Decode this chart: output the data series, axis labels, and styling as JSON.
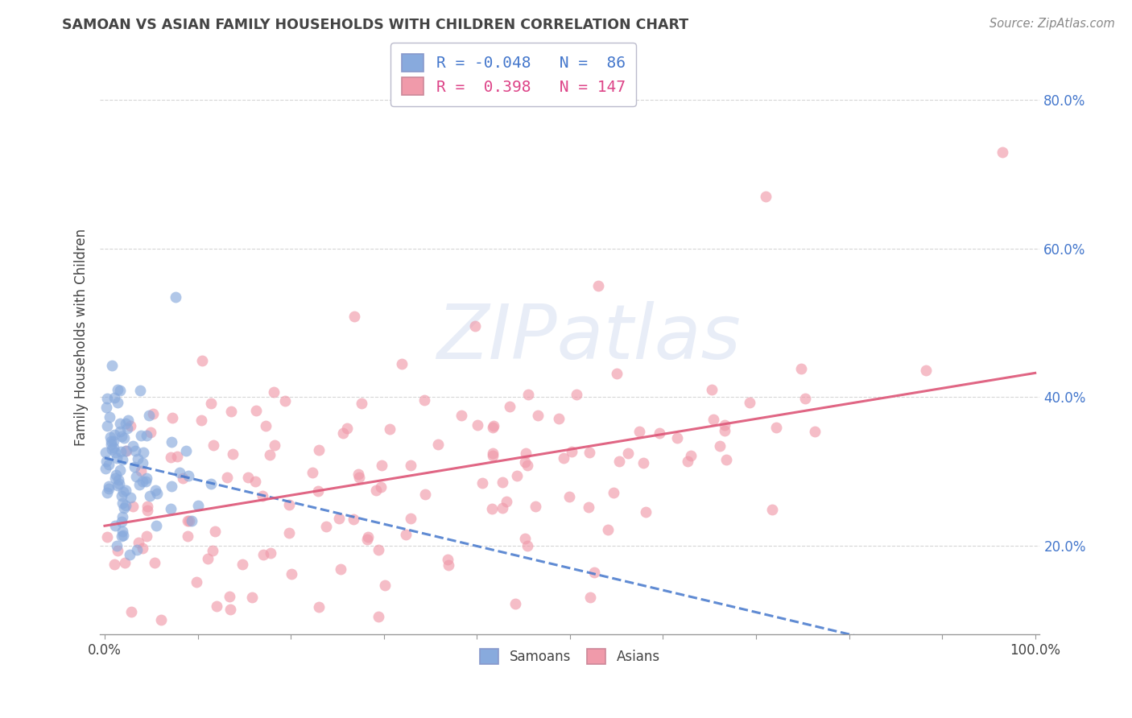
{
  "title": "SAMOAN VS ASIAN FAMILY HOUSEHOLDS WITH CHILDREN CORRELATION CHART",
  "source": "Source: ZipAtlas.com",
  "ylabel": "Family Households with Children",
  "xlim": [
    -0.005,
    1.005
  ],
  "ylim": [
    0.08,
    0.88
  ],
  "xticks": [
    0.0,
    0.1,
    0.2,
    0.3,
    0.4,
    0.5,
    0.6,
    0.7,
    0.8,
    0.9,
    1.0
  ],
  "yticks": [
    0.2,
    0.4,
    0.6,
    0.8
  ],
  "samoan_color": "#88aadd",
  "asian_color": "#f09aaa",
  "samoan_line_color": "#4477cc",
  "asian_line_color": "#dd5577",
  "r_samoan": -0.048,
  "n_samoan": 86,
  "r_asian": 0.398,
  "n_asian": 147,
  "watermark": "ZIPatlas",
  "title_color": "#444444",
  "source_color": "#888888",
  "ylabel_color": "#444444",
  "ytick_color": "#4477cc",
  "xtick_color": "#444444",
  "grid_color": "#cccccc",
  "legend_text_color": "#4477cc"
}
